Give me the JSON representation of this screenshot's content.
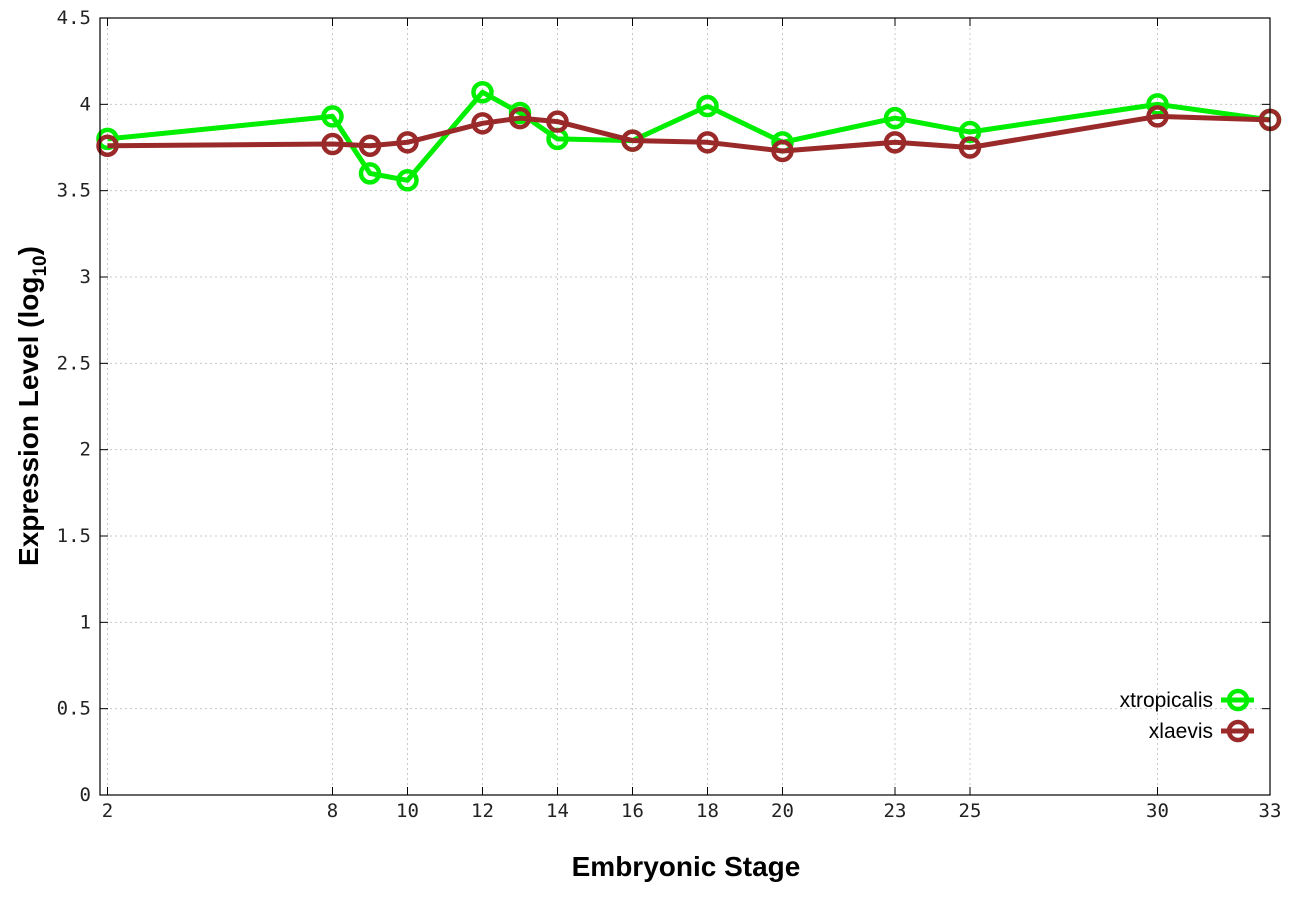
{
  "chart_data": {
    "type": "line",
    "title": "",
    "xlabel": "Embryonic Stage",
    "ylabel_main": "Expression Level (log",
    "ylabel_sub": "10",
    "ylabel_close": ")",
    "xlim": [
      1.8,
      33
    ],
    "ylim": [
      0,
      4.5
    ],
    "x_ticks": [
      2,
      8,
      10,
      12,
      14,
      16,
      18,
      20,
      23,
      25,
      30,
      33
    ],
    "y_ticks": [
      0,
      0.5,
      1,
      1.5,
      2,
      2.5,
      3,
      3.5,
      4,
      4.5
    ],
    "y_tick_labels": [
      "0",
      "0.5",
      "1",
      "1.5",
      "2",
      "2.5",
      "3",
      "3.5",
      "4",
      "4.5"
    ],
    "grid": true,
    "legend_position": "bottom-right",
    "series": [
      {
        "name": "xtropicalis",
        "color": "#00ee00",
        "x": [
          2,
          8,
          9,
          10,
          12,
          13,
          14,
          16,
          18,
          20,
          23,
          25,
          30,
          33
        ],
        "y": [
          3.8,
          3.93,
          3.6,
          3.56,
          4.07,
          3.95,
          3.8,
          3.79,
          3.99,
          3.78,
          3.92,
          3.84,
          4.0,
          3.91
        ]
      },
      {
        "name": "xlaevis",
        "color": "#9a2a2a",
        "x": [
          2,
          8,
          9,
          10,
          12,
          13,
          14,
          16,
          18,
          20,
          23,
          25,
          30,
          33
        ],
        "y": [
          3.76,
          3.77,
          3.76,
          3.78,
          3.89,
          3.92,
          3.9,
          3.79,
          3.78,
          3.73,
          3.78,
          3.75,
          3.93,
          3.91
        ]
      }
    ]
  }
}
